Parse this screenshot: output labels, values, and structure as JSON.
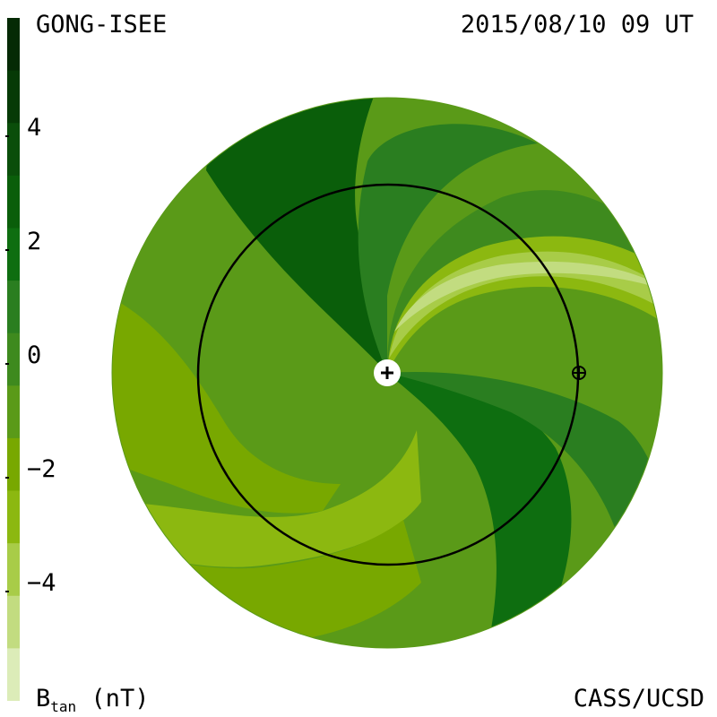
{
  "header": {
    "source": "GONG-ISEE",
    "timestamp": "2015/08/10 09 UT"
  },
  "footer": {
    "quantity": "B",
    "quantity_sub": "tan",
    "units": " (nT)",
    "credit": "CASS/UCSD"
  },
  "colors": {
    "levels": [
      "#dcecb8",
      "#c2dc80",
      "#a8cc48",
      "#8cb810",
      "#78a800",
      "#5a9a18",
      "#3e8a1e",
      "#2a7e20",
      "#0e6e10",
      "#0a5e0a",
      "#0a4e0a",
      "#063a06",
      "#052a05"
    ]
  },
  "chart_data": {
    "type": "heatmap",
    "colorbar": {
      "min": -6,
      "max": 6,
      "ticks": [
        4,
        2,
        0,
        -2,
        -4
      ],
      "tick_labels": [
        "4",
        "2",
        "0",
        "−2",
        "−4"
      ]
    },
    "markers": [
      {
        "name": "sun",
        "symbol": "+"
      },
      {
        "name": "earth",
        "symbol": "⊕"
      }
    ]
  }
}
